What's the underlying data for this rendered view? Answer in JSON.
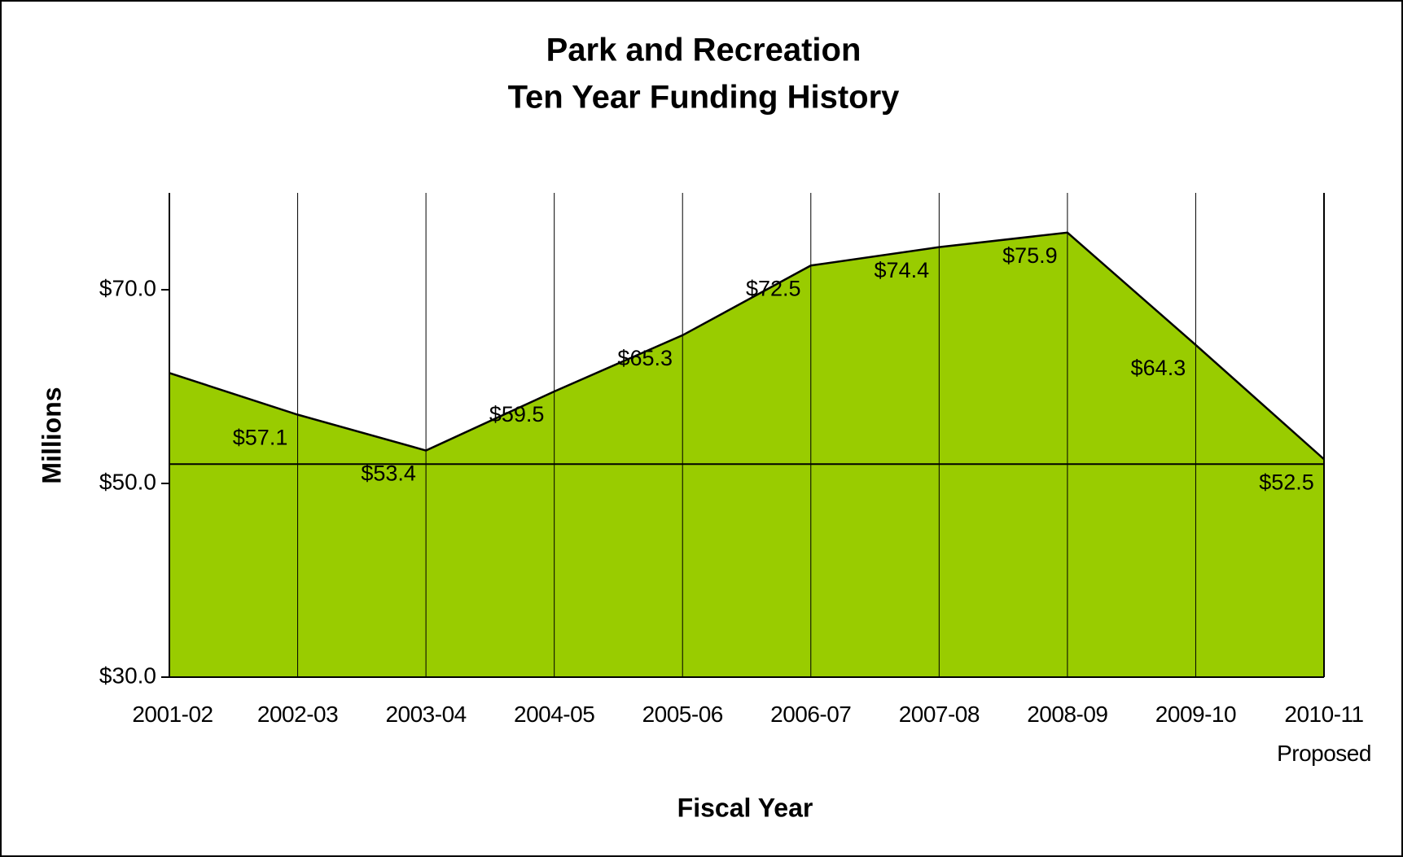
{
  "chart_data": {
    "type": "area",
    "title": "Park and Recreation",
    "subtitle": "Ten Year Funding History",
    "y_label": "Millions",
    "x_label": "Fiscal Year",
    "categories": [
      "2001-02",
      "2002-03",
      "2003-04",
      "2004-05",
      "2005-06",
      "2006-07",
      "2007-08",
      "2008-09",
      "2009-10",
      "2010-11\nProposed"
    ],
    "values": [
      61.4,
      57.1,
      53.4,
      59.5,
      65.3,
      72.5,
      74.4,
      75.9,
      64.3,
      52.5
    ],
    "value_labels": [
      null,
      "$57.1",
      "$53.4",
      "$59.5",
      "$65.3",
      "$72.5",
      "$74.4",
      "$75.9",
      "$64.3",
      "$52.5"
    ],
    "color": "#99cc00",
    "ylim": [
      30,
      80
    ],
    "yticks": [
      {
        "value": 30,
        "label": "$30.0"
      },
      {
        "value": 50,
        "label": "$50.0"
      },
      {
        "value": 70,
        "label": "$70.0"
      }
    ],
    "hline": 52,
    "grid": true
  }
}
